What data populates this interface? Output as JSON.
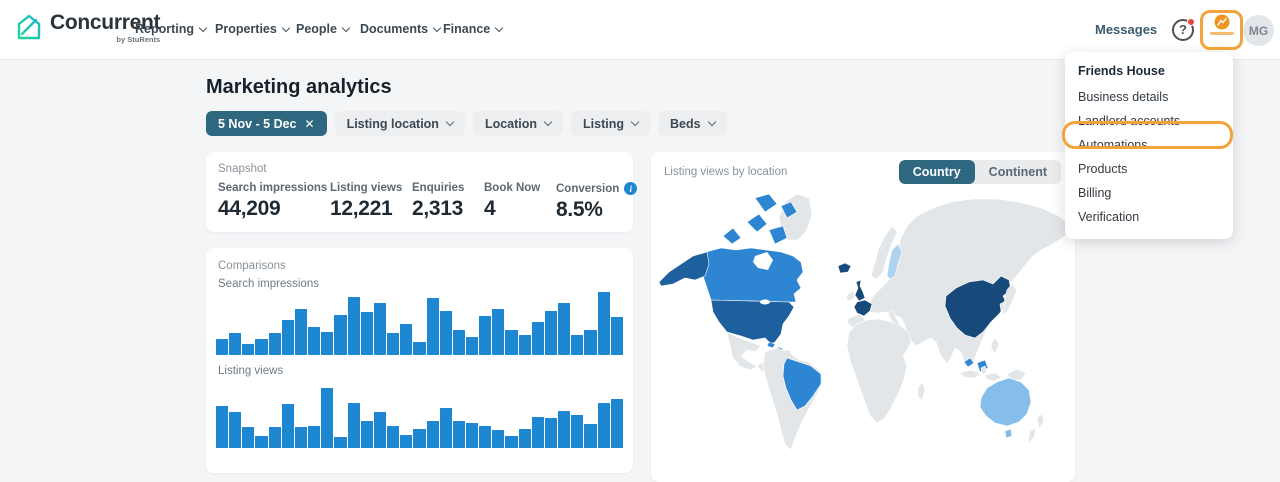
{
  "header": {
    "brand": {
      "name": "Concurrent",
      "byline": "by StuRents"
    },
    "nav": [
      "Reporting",
      "Properties",
      "People",
      "Documents",
      "Finance"
    ],
    "messages_label": "Messages",
    "avatar_initials": "MG"
  },
  "glyphs": {
    "question": "?",
    "close": "✕",
    "info": "i"
  },
  "account_menu": {
    "header": "Friends House",
    "items": [
      "Business details",
      "Landlord accounts",
      "Automations",
      "Products",
      "Billing",
      "Verification"
    ]
  },
  "annotations": {
    "color": "#F2A33C",
    "highlighted_targets": [
      "account-menu-button",
      "Automations menu item"
    ]
  },
  "page": {
    "title": "Marketing analytics",
    "filters": {
      "date_range": "5 Nov - 5 Dec",
      "dropdowns": [
        "Listing location",
        "Location",
        "Listing",
        "Beds"
      ]
    }
  },
  "snapshot": {
    "label": "Snapshot",
    "stats": [
      {
        "label": "Search impressions",
        "value": "44,209"
      },
      {
        "label": "Listing views",
        "value": "12,221"
      },
      {
        "label": "Enquiries",
        "value": "2,313"
      },
      {
        "label": "Book Now",
        "value": "4"
      },
      {
        "label": "Conversion",
        "value": "8.5%",
        "info": true
      }
    ]
  },
  "comparisons": {
    "label": "Comparisons"
  },
  "map_panel": {
    "title": "Listing views by location",
    "toggle": [
      "Country",
      "Continent"
    ],
    "active": "Country"
  },
  "chart_data": [
    {
      "type": "bar",
      "title": "Search impressions",
      "note": "31 daily bars spanning the selected 5 Nov - 5 Dec range; axes unlabeled, heights relative (%)",
      "ylim": [
        0,
        100
      ],
      "values_pct": [
        25,
        35,
        18,
        25,
        35,
        55,
        73,
        45,
        36,
        64,
        92,
        68,
        83,
        35,
        50,
        21,
        90,
        70,
        40,
        28,
        62,
        73,
        40,
        31,
        52,
        70,
        82,
        31,
        39,
        100,
        61
      ]
    },
    {
      "type": "bar",
      "title": "Listing views",
      "note": "31 daily bars spanning the selected 5 Nov - 5 Dec range; axes unlabeled, heights relative (%)",
      "ylim": [
        0,
        100
      ],
      "values_pct": [
        66,
        57,
        33,
        19,
        33,
        70,
        33,
        35,
        96,
        17,
        71,
        43,
        57,
        35,
        20,
        30,
        43,
        64,
        43,
        39,
        35,
        28,
        19,
        30,
        50,
        47,
        59,
        52,
        38,
        72,
        78
      ]
    },
    {
      "type": "choropleth",
      "title": "Listing views by location",
      "mode": "Country",
      "level_colors": {
        "highest": "#17497B",
        "high": "#1E5F9D",
        "mid": "#2E86D2",
        "low": "#85BEEA",
        "lowest": "#AED3F0",
        "none": "#E3E6E9"
      },
      "countries": {
        "uk": "highest",
        "france": "highest",
        "iceland": "highest",
        "china": "highest",
        "usa": "high",
        "alaska": "high",
        "canada": "mid",
        "canada-islands": "mid",
        "brazil": "mid",
        "malaysia": "mid",
        "borneo-my": "mid",
        "caribbean": "mid",
        "australia": "low",
        "tasmania": "low",
        "finland": "lowest"
      }
    }
  ],
  "colors": {
    "teal_chip": "#2D6780",
    "bar_blue": "#1E87D2",
    "annotation_orange": "#F2A33C",
    "notification_red": "#E8453C",
    "brand_teal": "#2BC79E"
  }
}
